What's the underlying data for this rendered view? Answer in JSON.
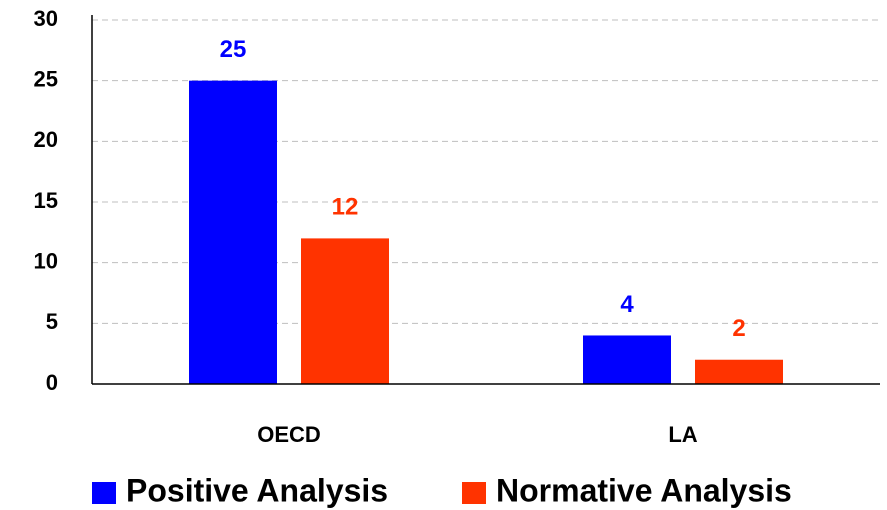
{
  "chart_data": {
    "type": "bar",
    "categories": [
      "OECD",
      "LA"
    ],
    "series": [
      {
        "name": "Positive Analysis",
        "color": "#0000ff",
        "values": [
          25,
          4
        ]
      },
      {
        "name": "Normative Analysis",
        "color": "#ff3300",
        "values": [
          12,
          2
        ]
      }
    ],
    "ylim": [
      0,
      30
    ],
    "yticks": [
      0,
      5,
      10,
      15,
      20,
      25,
      30
    ],
    "grid": true,
    "legend": "bottom"
  }
}
